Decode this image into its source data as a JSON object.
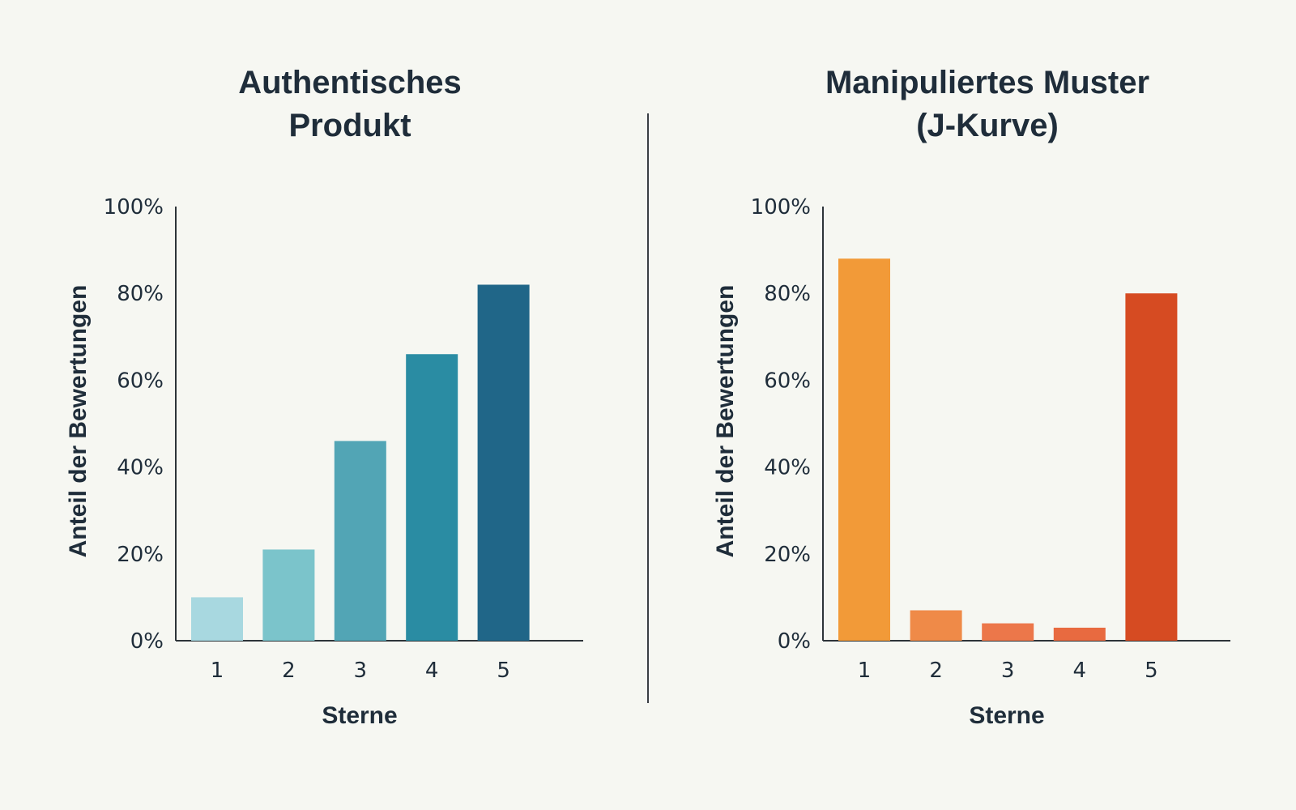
{
  "chart_data": [
    {
      "type": "bar",
      "title": [
        "Authentisches",
        "Produkt"
      ],
      "xlabel": "Sterne",
      "ylabel": "Anteil der Bewertungen",
      "categories": [
        "1",
        "2",
        "3",
        "4",
        "5"
      ],
      "values": [
        10,
        21,
        46,
        66,
        82
      ],
      "colors": [
        "#a8d8e0",
        "#7bc4cb",
        "#52a5b5",
        "#2a8ca3",
        "#206688"
      ],
      "ylim": [
        0,
        100
      ],
      "yticks": [
        "0%",
        "20%",
        "40%",
        "60%",
        "80%",
        "100%"
      ],
      "grid": false
    },
    {
      "type": "bar",
      "title": [
        "Manipuliertes Muster",
        "(J-Kurve)"
      ],
      "xlabel": "Sterne",
      "ylabel": "Anteil der Bewertungen",
      "categories": [
        "1",
        "2",
        "3",
        "4",
        "5"
      ],
      "values": [
        88,
        7,
        4,
        3,
        80
      ],
      "colors": [
        "#f29a38",
        "#ef8a48",
        "#ec774a",
        "#e86a40",
        "#d64b22"
      ],
      "ylim": [
        0,
        100
      ],
      "yticks": [
        "0%",
        "20%",
        "40%",
        "60%",
        "80%",
        "100%"
      ],
      "grid": false
    }
  ],
  "divider_color": "#3a3f44"
}
